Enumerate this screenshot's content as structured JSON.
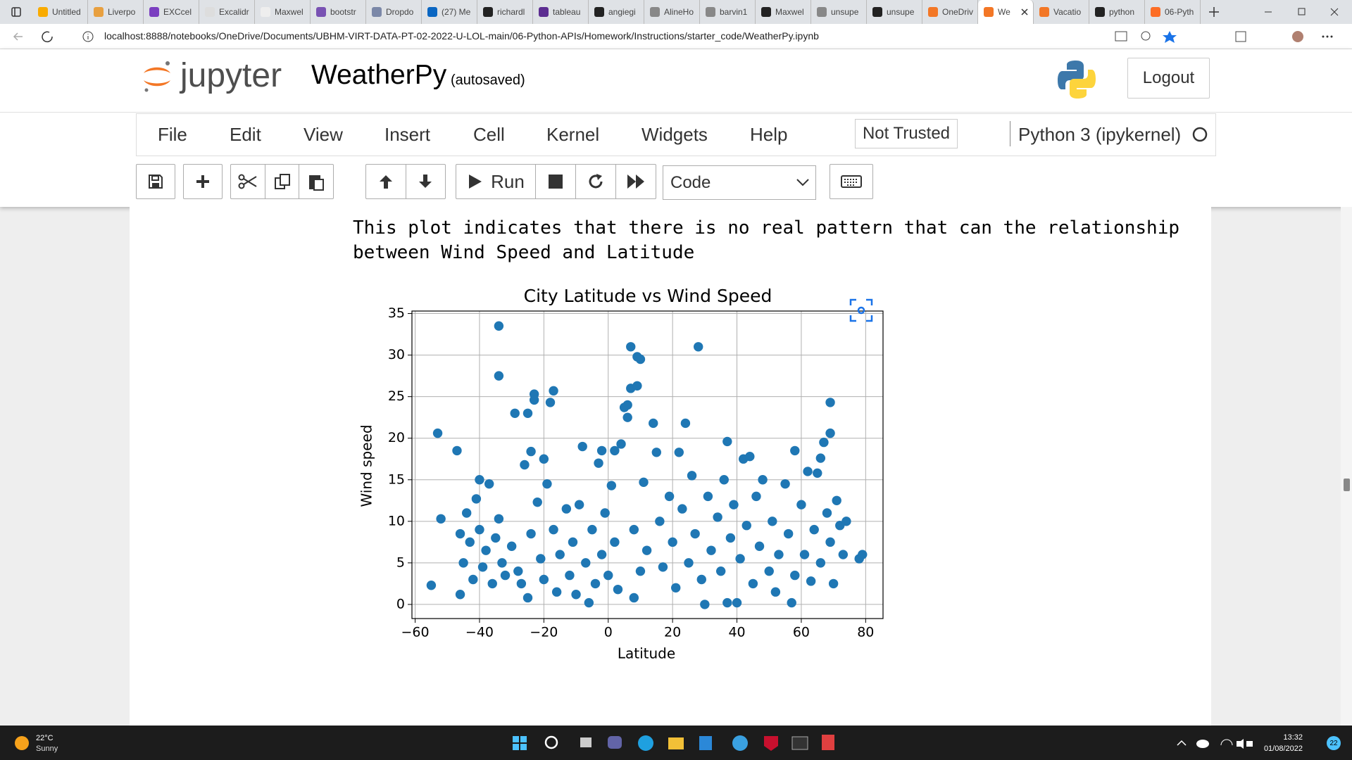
{
  "browser": {
    "tabs": [
      "Untitled",
      "Liverpo",
      "EXCcel",
      "Excalidr",
      "Maxwel",
      "bootstr",
      "Dropdo",
      "(27) Me",
      "richardl",
      "tableau",
      "angiegi",
      "AlineHo",
      "barvin1",
      "Maxwel",
      "unsupe",
      "unsupe",
      "OneDriv",
      "We",
      "Vacatio",
      "python",
      "06-Pyth"
    ],
    "url": "localhost:8888/notebooks/OneDrive/Documents/UBHM-VIRT-DATA-PT-02-2022-U-LOL-main/06-Python-APIs/Homework/Instructions/starter_code/WeatherPy.ipynb"
  },
  "header": {
    "logo": "jupyter",
    "notebook_name": "WeatherPy",
    "status": "(autosaved)",
    "logout": "Logout"
  },
  "menu": {
    "items": [
      "File",
      "Edit",
      "View",
      "Insert",
      "Cell",
      "Kernel",
      "Widgets",
      "Help"
    ],
    "trusted": "Not Trusted",
    "kernel": "Python 3 (ipykernel)"
  },
  "toolbar": {
    "run": "Run",
    "cell_type": "Code"
  },
  "markdown": {
    "lines": [
      "This plot indicates that there is no real pattern that can the relationship",
      "between Wind Speed and Latitude"
    ]
  },
  "chart_data": {
    "type": "scatter",
    "title": "City Latitude vs Wind Speed",
    "x_label": "Latitude",
    "y_label": "Wind speed",
    "color": "#1f77b4",
    "grid": true,
    "xlim": [
      -61,
      85.4
    ],
    "ylim": [
      -1.7,
      35.3
    ],
    "xticks": [
      {
        "value": -60,
        "label": "−60"
      },
      {
        "value": -40,
        "label": "−40"
      },
      {
        "value": -20,
        "label": "−20"
      },
      0,
      20,
      40,
      60,
      80
    ],
    "yticks": [
      0,
      5,
      10,
      15,
      20,
      25,
      30,
      35
    ],
    "x": [
      -55,
      -53,
      -52,
      -47,
      -46,
      -46,
      -45,
      -44,
      -43,
      -42,
      -41,
      -40,
      -40,
      -39,
      -38,
      -37,
      -36,
      -35,
      -34,
      -34,
      -34,
      -33,
      -32,
      -30,
      -29,
      -28,
      -27,
      -26,
      -25,
      -25,
      -24,
      -24,
      -23,
      -23,
      -22,
      -21,
      -20,
      -20,
      -19,
      -18,
      -17,
      -17,
      -16,
      -15,
      -13,
      -12,
      -11,
      -10,
      -9,
      -8,
      -7,
      -6,
      -5,
      -4,
      -3,
      -2,
      -2,
      -1,
      0,
      1,
      2,
      2,
      3,
      4,
      5,
      6,
      6,
      7,
      7,
      8,
      8,
      9,
      9,
      10,
      10,
      11,
      12,
      14,
      15,
      16,
      17,
      19,
      20,
      21,
      22,
      23,
      24,
      25,
      26,
      27,
      28,
      29,
      30,
      31,
      32,
      34,
      35,
      36,
      37,
      37,
      38,
      39,
      40,
      41,
      42,
      43,
      44,
      45,
      46,
      47,
      48,
      50,
      51,
      52,
      53,
      55,
      56,
      57,
      58,
      58,
      60,
      61,
      62,
      63,
      64,
      65,
      66,
      66,
      67,
      68,
      69,
      69,
      69,
      70,
      71,
      72,
      73,
      74,
      78,
      79
    ],
    "values": [
      2.3,
      20.6,
      10.3,
      18.5,
      1.2,
      8.5,
      5,
      11,
      7.5,
      3,
      12.7,
      15,
      9,
      4.5,
      6.5,
      14.5,
      2.5,
      8,
      33.5,
      27.5,
      10.3,
      5,
      3.5,
      7,
      23,
      4,
      2.5,
      16.8,
      23,
      0.8,
      18.4,
      8.5,
      25.3,
      24.6,
      12.3,
      5.5,
      17.5,
      3,
      14.5,
      24.3,
      25.7,
      9,
      1.5,
      6,
      11.5,
      3.5,
      7.5,
      1.2,
      12,
      19,
      5,
      0.2,
      9,
      2.5,
      17,
      18.5,
      6,
      11,
      3.5,
      14.3,
      18.5,
      7.5,
      1.8,
      19.3,
      23.7,
      24,
      22.5,
      31,
      26,
      0.8,
      9,
      29.8,
      26.3,
      29.5,
      4,
      14.7,
      6.5,
      21.8,
      18.3,
      10,
      4.5,
      13,
      7.5,
      2,
      18.3,
      11.5,
      21.8,
      5,
      15.5,
      8.5,
      31,
      3,
      0,
      13,
      6.5,
      10.5,
      4,
      15,
      19.6,
      0.2,
      8,
      12,
      0.2,
      5.5,
      17.5,
      9.5,
      17.8,
      2.5,
      13,
      7,
      15,
      4,
      10,
      1.5,
      6,
      14.5,
      8.5,
      0.2,
      18.5,
      3.5,
      12,
      6,
      16,
      2.8,
      9,
      15.8,
      17.6,
      5,
      19.5,
      11,
      24.3,
      20.6,
      7.5,
      2.5,
      12.5,
      9.5,
      6,
      10,
      5.5,
      6
    ]
  },
  "taskbar": {
    "temperature": "22°C",
    "weather": "Sunny",
    "time": "13:32",
    "date": "01/08/2022",
    "badge": "22"
  }
}
